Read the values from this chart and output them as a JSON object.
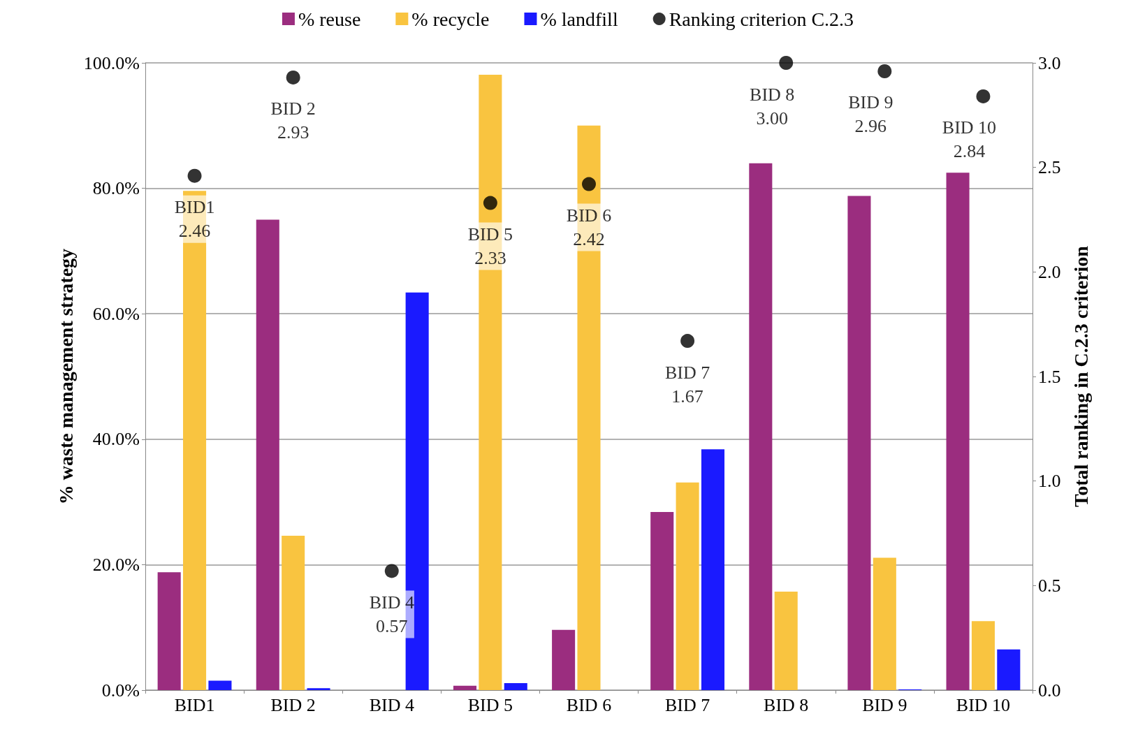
{
  "chart_data": {
    "type": "bar",
    "categories": [
      "BID1",
      "BID 2",
      "BID 4",
      "BID 5",
      "BID 6",
      "BID 7",
      "BID 8",
      "BID 9",
      "BID 10"
    ],
    "series": [
      {
        "name": "% reuse",
        "color": "#9b2d7f",
        "values": [
          18.8,
          75.0,
          0,
          0.7,
          9.6,
          28.4,
          84.0,
          78.8,
          82.5
        ]
      },
      {
        "name": "% recycle",
        "color": "#f9c440",
        "values": [
          79.6,
          24.6,
          0,
          98.1,
          90.0,
          33.1,
          15.7,
          21.1,
          11.0
        ]
      },
      {
        "name": "% landfill",
        "color": "#1a1aff",
        "values": [
          1.5,
          0.3,
          63.4,
          1.1,
          0,
          38.4,
          0,
          0.1,
          6.5
        ]
      },
      {
        "name": "Ranking criterion C.2.3",
        "type": "scatter",
        "axis": "y2",
        "color": "#000000",
        "x": [
          "BID1",
          "BID 2",
          "BID 4",
          "BID 5",
          "BID 6",
          "BID 7",
          "BID 8",
          "BID 9",
          "BID 10"
        ],
        "values": [
          2.46,
          2.93,
          0.57,
          2.33,
          2.42,
          1.67,
          3.0,
          2.96,
          2.84
        ],
        "value_labels": [
          "BID1\n2.46",
          "BID 2\n2.93",
          "BID 4\n0.57",
          "BID 5\n2.33",
          "BID 6\n2.42",
          "BID 7\n1.67",
          "BID 8\n3.00",
          "BID 9\n2.96",
          "BID 10\n2.84"
        ]
      }
    ],
    "ylabel": "% waste management strategy",
    "y2label": "Total ranking in C.2.3 criterion",
    "ylim": [
      0,
      100
    ],
    "yticks": [
      {
        "value": 0,
        "label": "0.0%"
      },
      {
        "value": 20,
        "label": "20.0%"
      },
      {
        "value": 40,
        "label": "40.0%"
      },
      {
        "value": 60,
        "label": "60.0%"
      },
      {
        "value": 80,
        "label": "80.0%"
      },
      {
        "value": 100,
        "label": "100.0%"
      }
    ],
    "y2lim": [
      0,
      3
    ],
    "y2ticks": [
      {
        "value": 0,
        "label": "0.0"
      },
      {
        "value": 0.5,
        "label": "0.5"
      },
      {
        "value": 1,
        "label": "1.0"
      },
      {
        "value": 1.5,
        "label": "1.5"
      },
      {
        "value": 2,
        "label": "2.0"
      },
      {
        "value": 2.5,
        "label": "2.5"
      },
      {
        "value": 3,
        "label": "3.0"
      }
    ],
    "grid": "y",
    "legend": "top",
    "marker": "circle"
  }
}
